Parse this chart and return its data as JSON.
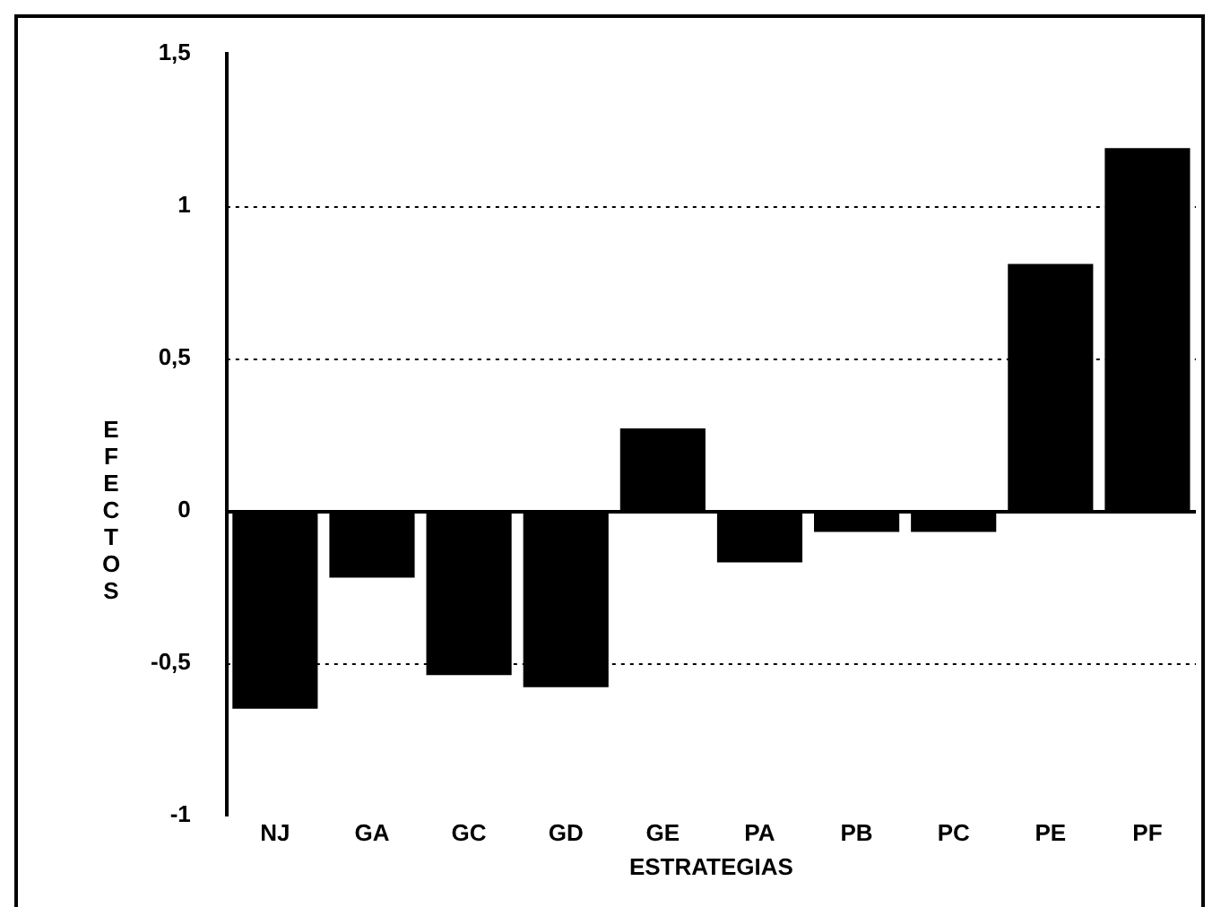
{
  "chart_data": {
    "type": "bar",
    "xlabel": "ESTRATEGIAS",
    "ylabel": "EFECTOS",
    "categories": [
      "NJ",
      "GA",
      "GC",
      "GD",
      "GE",
      "PA",
      "PB",
      "PC",
      "PE",
      "PF"
    ],
    "values": [
      -0.65,
      -0.22,
      -0.54,
      -0.58,
      0.27,
      -0.17,
      -0.07,
      -0.07,
      0.81,
      1.19
    ],
    "color": "#000000",
    "ylim": [
      -1,
      1.5
    ],
    "yticks": [
      -1,
      {
        "value": -0.5,
        "label": "-0,5"
      },
      0,
      {
        "value": 0.5,
        "label": "0,5"
      },
      1,
      {
        "value": 1.5,
        "label": "1,5"
      }
    ],
    "grid": "y",
    "line_style": "dotted"
  }
}
